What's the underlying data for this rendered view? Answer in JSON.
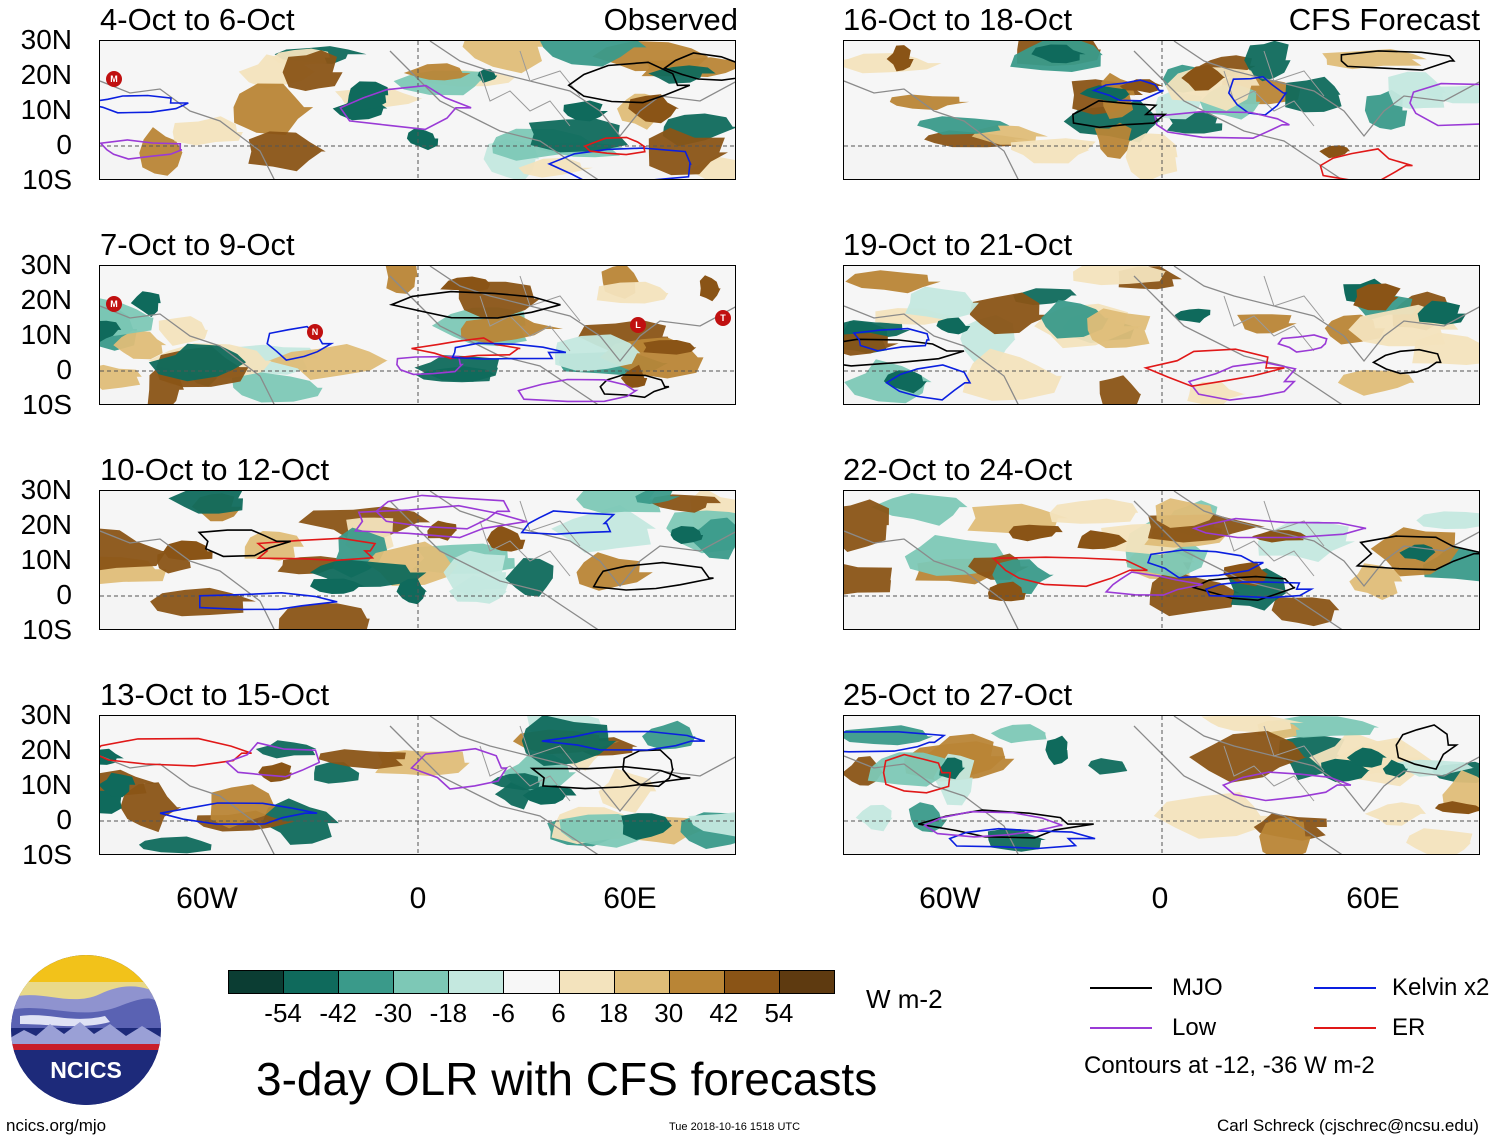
{
  "header": {
    "left_label": "Observed",
    "right_label": "CFS Forecast"
  },
  "panels": {
    "observed": [
      "4-Oct to 6-Oct",
      "7-Oct to 9-Oct",
      "10-Oct to 12-Oct",
      "13-Oct to 15-Oct"
    ],
    "forecast": [
      "16-Oct to 18-Oct",
      "19-Oct to 21-Oct",
      "22-Oct to 24-Oct",
      "25-Oct to 27-Oct"
    ]
  },
  "axes": {
    "lat_labels": [
      "30N",
      "20N",
      "10N",
      "0",
      "10S"
    ],
    "lon_labels": [
      "60W",
      "0",
      "60E"
    ]
  },
  "storm_markers": {
    "p1": [
      "M"
    ],
    "p2": [
      "M",
      "N",
      "L",
      "T"
    ]
  },
  "colorbar": {
    "labels": [
      "-54",
      "-42",
      "-30",
      "-18",
      "-6",
      "6",
      "18",
      "30",
      "42",
      "54"
    ],
    "units": "W m-2",
    "colors": [
      "#0b3d33",
      "#0f6a5c",
      "#3a9a8a",
      "#7dc8b6",
      "#c4e8df",
      "#f7f7f7",
      "#f3e3bd",
      "#dfbd78",
      "#b98536",
      "#8a5416",
      "#5e3a10"
    ]
  },
  "legend": {
    "items": [
      {
        "label": "MJO",
        "color": "#000000"
      },
      {
        "label": "Kelvin x2",
        "color": "#0a1fe0"
      },
      {
        "label": "Low",
        "color": "#9a3ad6"
      },
      {
        "label": "ER",
        "color": "#e01818"
      }
    ],
    "note": "Contours at -12, -36 W m-2"
  },
  "logo": {
    "text": "NCICS"
  },
  "title": "3-day OLR with CFS forecasts",
  "footer": {
    "left": "ncics.org/mjo",
    "center": "Tue 2018-10-16 1518 UTC",
    "right": "Carl Schreck (cjschrec@ncsu.edu)"
  }
}
